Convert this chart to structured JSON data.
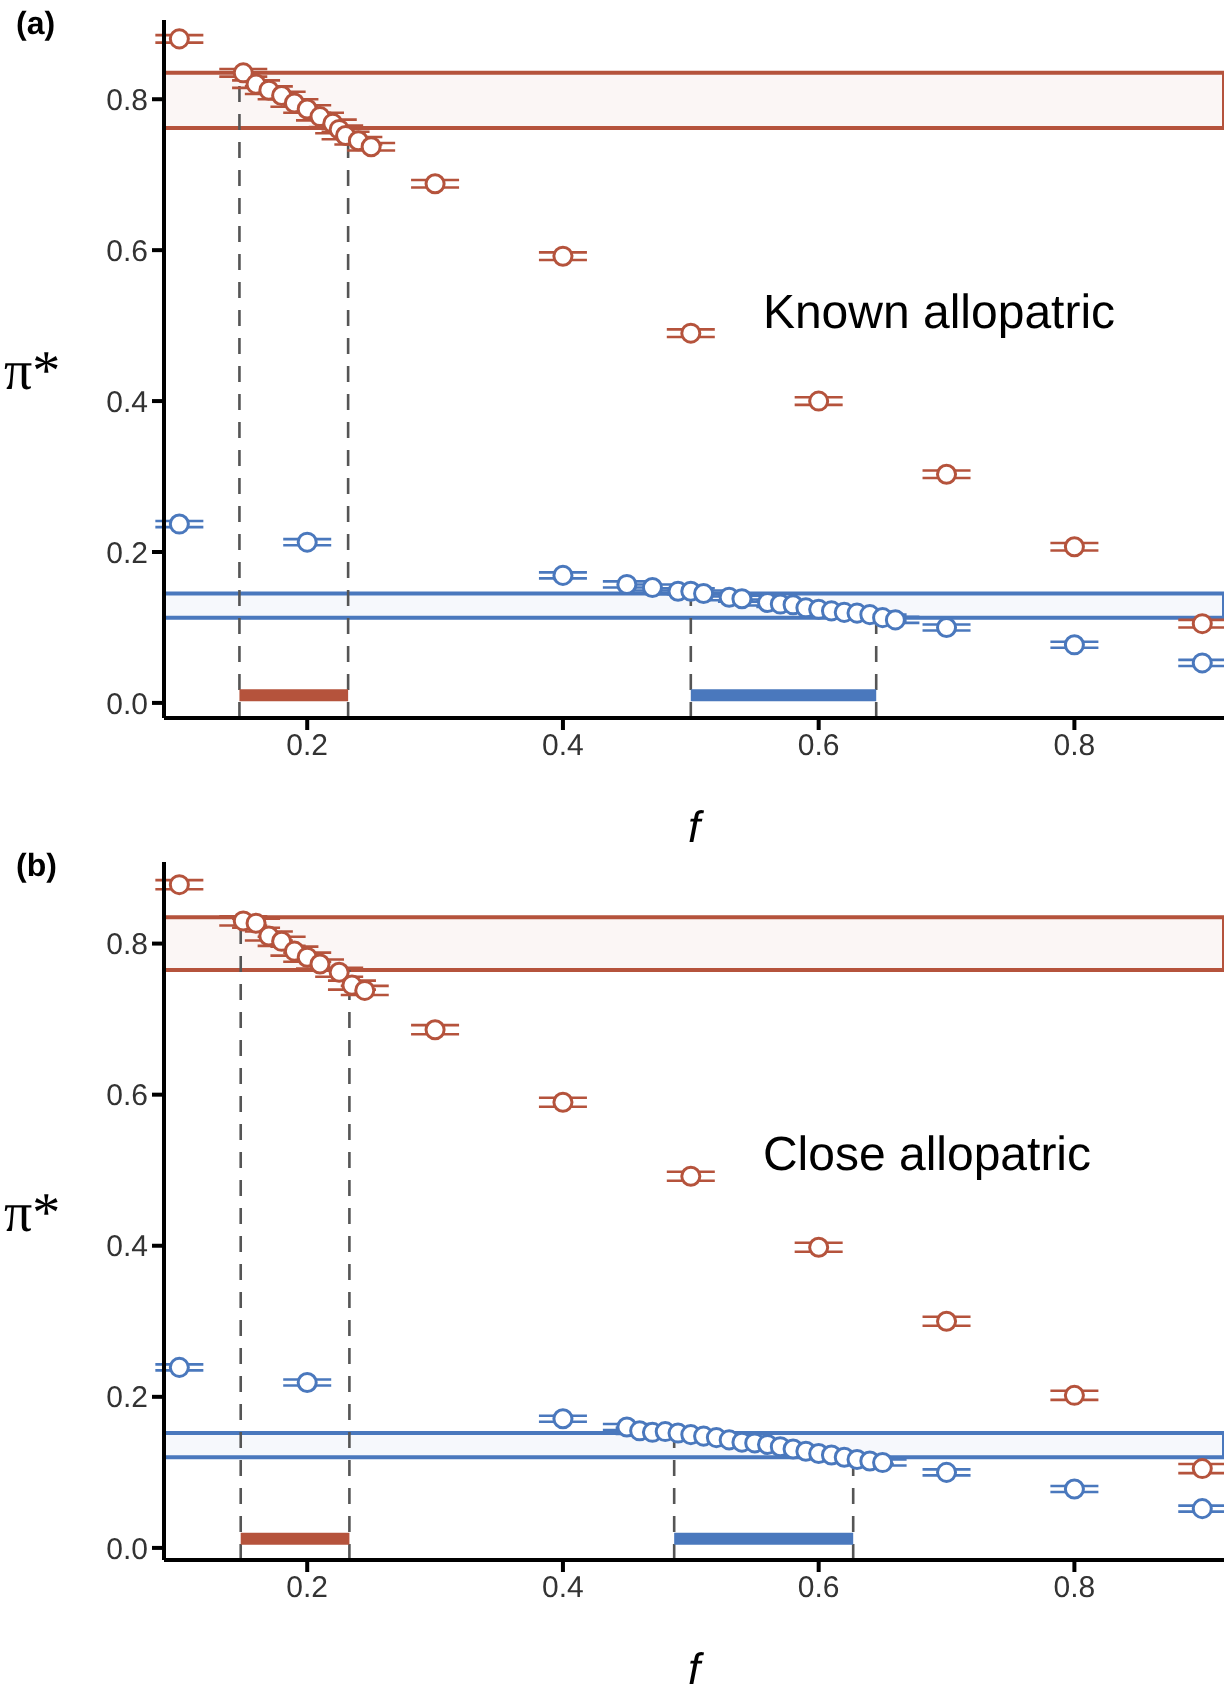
{
  "chart_data": [
    {
      "type": "scatter",
      "title": "(a)",
      "xlabel": "f",
      "ylabel": "π*",
      "annotations": [
        "Known allopatric"
      ],
      "marker": "circle",
      "legend": false,
      "grid": false,
      "xlim": [
        0.088,
        0.917
      ],
      "xticks": [
        0.2,
        0.4,
        0.6,
        0.8
      ],
      "ylim": [
        -0.02,
        0.905
      ],
      "yticks": [
        {
          "value": 0,
          "label": "0.0"
        },
        0.2,
        0.4,
        0.6,
        0.8
      ],
      "ref_lines": [
        {
          "axis": "x",
          "value": 0.147,
          "color": "#555555",
          "line_style": "dashed"
        },
        {
          "axis": "x",
          "value": 0.232,
          "color": "#555555",
          "line_style": "dashed"
        },
        {
          "axis": "x",
          "value": 0.5,
          "color": "#555555",
          "line_style": "dashed"
        },
        {
          "axis": "x",
          "value": 0.645,
          "color": "#555555",
          "line_style": "dashed"
        }
      ],
      "series": [
        {
          "color": "#b5533c",
          "x": [
            0.1,
            0.15,
            0.16,
            0.17,
            0.18,
            0.19,
            0.2,
            0.21,
            0.22,
            0.225,
            0.23,
            0.24,
            0.25,
            0.3,
            0.4,
            0.5,
            0.6,
            0.7,
            0.8,
            0.9
          ],
          "values": [
            0.88,
            0.835,
            0.82,
            0.812,
            0.805,
            0.795,
            0.787,
            0.777,
            0.768,
            0.76,
            0.752,
            0.745,
            0.737,
            0.688,
            0.592,
            0.49,
            0.4,
            0.303,
            0.207,
            0.105
          ],
          "errors": [
            0.005,
            0.005,
            0.005,
            0.005,
            0.005,
            0.005,
            0.005,
            0.005,
            0.005,
            0.005,
            0.005,
            0.005,
            0.005,
            0.005,
            0.005,
            0.005,
            0.005,
            0.005,
            0.005,
            0.005
          ]
        },
        {
          "color": "#4a78bd",
          "x": [
            0.1,
            0.2,
            0.4,
            0.45,
            0.47,
            0.49,
            0.5,
            0.51,
            0.53,
            0.54,
            0.56,
            0.57,
            0.58,
            0.59,
            0.6,
            0.61,
            0.62,
            0.63,
            0.64,
            0.65,
            0.66,
            0.7,
            0.8,
            0.9
          ],
          "values": [
            0.237,
            0.213,
            0.169,
            0.157,
            0.153,
            0.148,
            0.148,
            0.145,
            0.14,
            0.138,
            0.133,
            0.131,
            0.13,
            0.126,
            0.124,
            0.122,
            0.12,
            0.119,
            0.117,
            0.113,
            0.11,
            0.1,
            0.077,
            0.053
          ],
          "errors": [
            0.004,
            0.004,
            0.004,
            0.004,
            0.004,
            0.004,
            0.004,
            0.004,
            0.004,
            0.004,
            0.004,
            0.004,
            0.004,
            0.004,
            0.004,
            0.004,
            0.004,
            0.004,
            0.004,
            0.004,
            0.004,
            0.004,
            0.004,
            0.004
          ]
        },
        {
          "type": "line",
          "marker": "none",
          "color": "#b5533c",
          "x": [
            0.147,
            0.232
          ],
          "values": [
            0.01,
            0.01
          ]
        },
        {
          "type": "line",
          "marker": "none",
          "color": "#4a78bd",
          "x": [
            0.5,
            0.645
          ],
          "values": [
            0.01,
            0.01
          ]
        }
      ],
      "bands": [
        {
          "axis": "y",
          "from": 0.762,
          "to": 0.835,
          "color": "#b5533c"
        },
        {
          "axis": "y",
          "from": 0.113,
          "to": 0.145,
          "color": "#4a78bd"
        }
      ]
    },
    {
      "type": "scatter",
      "title": "(b)",
      "xlabel": "f",
      "ylabel": "π*",
      "annotations": [
        "Close allopatric"
      ],
      "marker": "circle",
      "legend": false,
      "grid": false,
      "xlim": [
        0.088,
        0.917
      ],
      "xticks": [
        0.2,
        0.4,
        0.6,
        0.8
      ],
      "ylim": [
        -0.016,
        0.908
      ],
      "yticks": [
        {
          "value": 0,
          "label": "0.0"
        },
        0.2,
        0.4,
        0.6,
        0.8
      ],
      "ref_lines": [
        {
          "axis": "x",
          "value": 0.148,
          "color": "#555555",
          "line_style": "dashed"
        },
        {
          "axis": "x",
          "value": 0.233,
          "color": "#555555",
          "line_style": "dashed"
        },
        {
          "axis": "x",
          "value": 0.487,
          "color": "#555555",
          "line_style": "dashed"
        },
        {
          "axis": "x",
          "value": 0.627,
          "color": "#555555",
          "line_style": "dashed"
        }
      ],
      "series": [
        {
          "color": "#b5533c",
          "x": [
            0.1,
            0.15,
            0.16,
            0.17,
            0.18,
            0.19,
            0.2,
            0.21,
            0.225,
            0.235,
            0.245,
            0.3,
            0.4,
            0.5,
            0.6,
            0.7,
            0.8,
            0.9
          ],
          "values": [
            0.878,
            0.83,
            0.827,
            0.81,
            0.803,
            0.79,
            0.782,
            0.773,
            0.762,
            0.745,
            0.738,
            0.686,
            0.59,
            0.492,
            0.398,
            0.3,
            0.202,
            0.105
          ],
          "errors": [
            0.006,
            0.006,
            0.006,
            0.006,
            0.006,
            0.006,
            0.006,
            0.006,
            0.006,
            0.006,
            0.006,
            0.006,
            0.006,
            0.006,
            0.006,
            0.006,
            0.006,
            0.006
          ]
        },
        {
          "color": "#4a78bd",
          "x": [
            0.1,
            0.2,
            0.4,
            0.45,
            0.46,
            0.47,
            0.48,
            0.49,
            0.5,
            0.51,
            0.52,
            0.53,
            0.54,
            0.55,
            0.56,
            0.57,
            0.58,
            0.59,
            0.6,
            0.61,
            0.62,
            0.63,
            0.64,
            0.65,
            0.7,
            0.8,
            0.9
          ],
          "values": [
            0.239,
            0.219,
            0.171,
            0.16,
            0.155,
            0.153,
            0.154,
            0.152,
            0.15,
            0.148,
            0.146,
            0.143,
            0.14,
            0.139,
            0.137,
            0.134,
            0.131,
            0.128,
            0.125,
            0.123,
            0.12,
            0.117,
            0.115,
            0.113,
            0.1,
            0.078,
            0.052
          ],
          "errors": [
            0.004,
            0.004,
            0.004,
            0.004,
            0.004,
            0.004,
            0.004,
            0.004,
            0.004,
            0.004,
            0.004,
            0.004,
            0.004,
            0.004,
            0.004,
            0.004,
            0.004,
            0.004,
            0.004,
            0.004,
            0.004,
            0.004,
            0.004,
            0.004,
            0.004,
            0.004,
            0.004
          ]
        },
        {
          "type": "line",
          "marker": "none",
          "color": "#b5533c",
          "x": [
            0.148,
            0.233
          ],
          "values": [
            0.012,
            0.012
          ]
        },
        {
          "type": "line",
          "marker": "none",
          "color": "#4a78bd",
          "x": [
            0.487,
            0.627
          ],
          "values": [
            0.012,
            0.012
          ]
        }
      ],
      "bands": [
        {
          "axis": "y",
          "from": 0.765,
          "to": 0.835,
          "color": "#b5533c"
        },
        {
          "axis": "y",
          "from": 0.12,
          "to": 0.152,
          "color": "#4a78bd"
        }
      ]
    }
  ]
}
